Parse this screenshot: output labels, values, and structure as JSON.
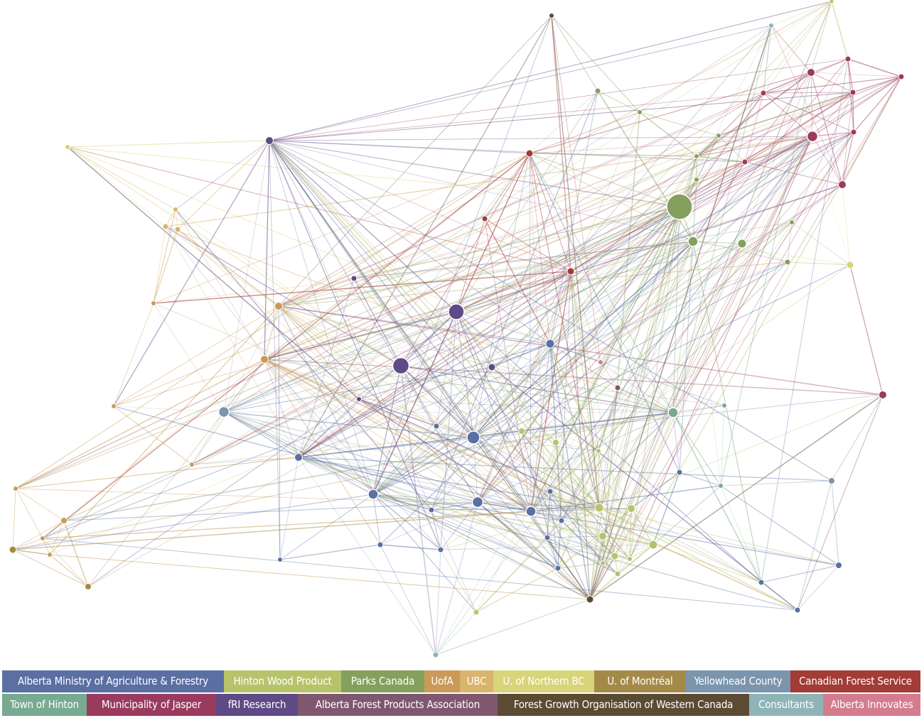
{
  "legend": {
    "row1": [
      {
        "label": "Alberta Ministry of Agriculture & Forestry",
        "color": "#5b6fa3"
      },
      {
        "label": "Hinton Wood Product",
        "color": "#b7c36b"
      },
      {
        "label": "Parks Canada",
        "color": "#85a05c"
      },
      {
        "label": "UofA",
        "color": "#c99a58"
      },
      {
        "label": "UBC",
        "color": "#d9b46c"
      },
      {
        "label": "U. of Northern BC",
        "color": "#d7d479"
      },
      {
        "label": "U. of Montréal",
        "color": "#a48a48"
      },
      {
        "label": "Yellowhead County",
        "color": "#7b95ad"
      },
      {
        "label": "Canadian Forest Service",
        "color": "#a33b36"
      }
    ],
    "row2": [
      {
        "label": "Town of Hinton",
        "color": "#77aa90"
      },
      {
        "label": "Municipality of Jasper",
        "color": "#9a3b5e"
      },
      {
        "label": "fRI Research",
        "color": "#5e4a86"
      },
      {
        "label": "Alberta Forest Products Association",
        "color": "#7f5870"
      },
      {
        "label": "Forest Growth Organisation of Western Canada",
        "color": "#5b4b33"
      },
      {
        "label": "Consultants",
        "color": "#8fb4b8"
      },
      {
        "label": "Alberta Innovates",
        "color": "#d47c8e"
      }
    ]
  }
}
